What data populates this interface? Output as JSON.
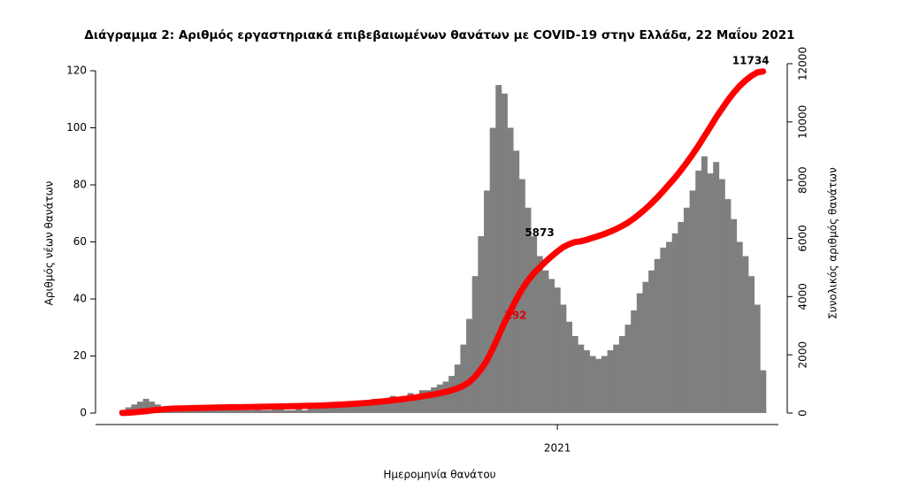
{
  "chart_data": {
    "type": "bar",
    "title": "Διάγραμμα 2: Αριθμός εργαστηριακά επιβεβαιωμένων θανάτων με COVID-19 στην Ελλάδα, 22 Μαΐου 2021",
    "x_label": "Ημερομηνία θανάτου",
    "y_label": "Αριθμός νέων θανάτων",
    "y2_label": "Συνολικός αριθμός θανάτων",
    "categories": [
      null,
      null,
      null,
      null,
      null,
      null,
      null,
      null,
      null,
      null,
      null,
      null,
      null,
      null,
      null,
      null,
      null,
      null,
      null,
      null,
      null,
      null,
      null,
      null,
      null,
      null,
      null,
      null,
      null,
      null,
      null,
      null,
      null,
      null,
      null,
      null,
      null,
      null,
      null,
      null,
      null,
      null,
      null,
      null,
      null,
      null,
      null,
      null,
      null,
      null,
      null,
      null,
      null,
      null,
      null,
      null,
      null,
      null,
      null,
      null,
      null,
      null,
      null,
      null,
      null,
      null,
      null,
      null,
      null,
      null,
      null,
      null,
      null,
      null,
      "2021",
      null,
      null,
      null,
      null,
      null,
      null,
      null,
      null,
      null,
      null,
      null,
      null,
      null,
      null,
      null,
      null,
      null,
      null,
      null,
      null,
      null,
      null,
      null,
      null,
      null,
      null,
      null,
      null,
      null,
      null,
      null,
      null,
      null,
      null,
      null
    ],
    "series": [
      {
        "name": "Αριθμός νέων θανάτων",
        "color": "#7f7f7f",
        "values": [
          1,
          2,
          3,
          4,
          5,
          4,
          3,
          2,
          2,
          1,
          1,
          1,
          1,
          1,
          2,
          1,
          1,
          1,
          1,
          1,
          1,
          1,
          1,
          2,
          1,
          1,
          2,
          2,
          1,
          1,
          2,
          1,
          2,
          2,
          2,
          3,
          3,
          2,
          3,
          3,
          4,
          4,
          3,
          5,
          5,
          4,
          6,
          5,
          6,
          7,
          6,
          8,
          8,
          9,
          10,
          11,
          13,
          17,
          24,
          33,
          48,
          62,
          78,
          100,
          115,
          112,
          100,
          92,
          82,
          72,
          62,
          55,
          50,
          47,
          44,
          38,
          32,
          27,
          24,
          22,
          20,
          19,
          20,
          22,
          24,
          27,
          31,
          36,
          42,
          46,
          50,
          54,
          58,
          60,
          63,
          67,
          72,
          78,
          85,
          90,
          84,
          88,
          82,
          75,
          68,
          60,
          55,
          48,
          38,
          15
        ]
      },
      {
        "name": "Συνολικός αριθμός θανάτων",
        "color": "#ff0000",
        "axis": "y2",
        "values": [
          5,
          12,
          25,
          45,
          65,
          90,
          110,
          130,
          145,
          155,
          160,
          165,
          170,
          175,
          180,
          184,
          188,
          192,
          196,
          200,
          203,
          206,
          209,
          212,
          216,
          220,
          224,
          228,
          232,
          236,
          240,
          245,
          250,
          256,
          262,
          270,
          280,
          290,
          300,
          312,
          325,
          340,
          355,
          375,
          395,
          415,
          440,
          460,
          485,
          515,
          540,
          575,
          605,
          640,
          680,
          725,
          780,
          850,
          940,
          1060,
          1250,
          1500,
          1800,
          2200,
          2650,
          3100,
          3500,
          3900,
          4250,
          4550,
          4800,
          5000,
          5200,
          5380,
          5550,
          5700,
          5800,
          5873,
          5900,
          5950,
          6020,
          6080,
          6150,
          6230,
          6320,
          6420,
          6540,
          6680,
          6840,
          7010,
          7200,
          7400,
          7620,
          7850,
          8080,
          8330,
          8600,
          8880,
          9180,
          9500,
          9820,
          10150,
          10450,
          10740,
          11000,
          11230,
          11420,
          11580,
          11700,
          11734
        ]
      }
    ],
    "annotations": [
      "292"
    ],
    "ylim": [
      0,
      120
    ],
    "yticks": [
      0,
      20,
      40,
      60,
      80,
      100,
      120
    ],
    "y2lim": [
      0,
      12000
    ],
    "y2ticks": [
      0,
      2000,
      4000,
      6000,
      8000,
      10000,
      12000
    ]
  }
}
